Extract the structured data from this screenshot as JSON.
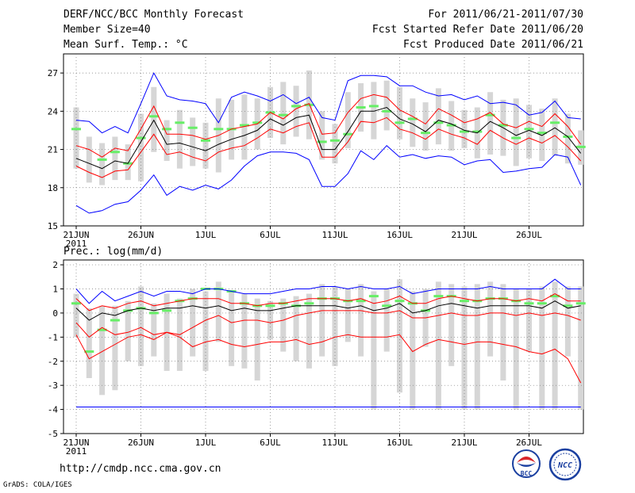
{
  "header": {
    "left": [
      "DERF/NCC/BCC Monthly Forecast",
      "Member Size=40",
      "Mean Surf. Temp.: °C"
    ],
    "right": [
      "For 2011/06/21-2011/07/30",
      "Fcst Started Refer Date 2011/06/20",
      "Fcst Produced Date 2011/06/21"
    ]
  },
  "footer": {
    "url": "http://cmdp.ncc.cma.gov.cn",
    "credit": "GrADS: COLA/IGES",
    "logo_bcc": "BCC",
    "logo_ncc": "NCC"
  },
  "colors": {
    "ensemble_mean": "#000000",
    "spread_band": "#ff0000",
    "envelope": "#0000ff",
    "climatology_marker": "#66ee66",
    "range_bar": "#d6d6d6"
  },
  "chart_data": [
    {
      "type": "line",
      "title": "Mean Surf. Temp.: °C",
      "x_tick_labels": [
        "21JUN",
        "26JUN",
        "1JUL",
        "6JUL",
        "11JUL",
        "16JUL",
        "21JUL",
        "26JUL"
      ],
      "x_tick_days": [
        0,
        5,
        10,
        15,
        20,
        25,
        30,
        35
      ],
      "year_label": "2011",
      "ylim": [
        15,
        28.5
      ],
      "y_ticks": [
        15,
        18,
        21,
        24,
        27
      ],
      "grid": true,
      "days": [
        0,
        1,
        2,
        3,
        4,
        5,
        6,
        7,
        8,
        9,
        10,
        11,
        12,
        13,
        14,
        15,
        16,
        17,
        18,
        19,
        20,
        21,
        22,
        23,
        24,
        25,
        26,
        27,
        28,
        29,
        30,
        31,
        32,
        33,
        34,
        35,
        36,
        37,
        38,
        39
      ],
      "series": [
        {
          "name": "max",
          "values": [
            23.3,
            23.2,
            22.3,
            22.8,
            22.3,
            24.6,
            27.0,
            25.2,
            24.9,
            24.8,
            24.6,
            23.1,
            25.1,
            25.5,
            25.2,
            24.8,
            25.3,
            24.6,
            25.1,
            23.5,
            23.3,
            26.4,
            26.8,
            26.8,
            26.7,
            26.0,
            26.0,
            25.5,
            25.2,
            25.3,
            24.9,
            25.2,
            24.6,
            24.7,
            24.5,
            23.7,
            23.9,
            24.8,
            23.5,
            23.4
          ]
        },
        {
          "name": "upper",
          "values": [
            21.3,
            21.0,
            20.4,
            21.1,
            20.9,
            22.6,
            24.4,
            22.2,
            22.2,
            22.1,
            21.8,
            22.1,
            22.6,
            22.8,
            23.0,
            23.9,
            23.4,
            24.2,
            24.6,
            22.2,
            22.3,
            23.9,
            25.0,
            25.3,
            25.1,
            24.1,
            23.6,
            23.0,
            24.2,
            23.7,
            23.1,
            23.4,
            23.9,
            23.0,
            22.7,
            23.2,
            22.8,
            23.8,
            22.8,
            21.4
          ]
        },
        {
          "name": "mean",
          "values": [
            20.3,
            19.9,
            19.5,
            20.1,
            19.9,
            21.6,
            23.3,
            21.4,
            21.5,
            21.2,
            20.9,
            21.4,
            21.8,
            22.1,
            22.5,
            23.4,
            22.9,
            23.5,
            23.7,
            21.0,
            21.0,
            22.4,
            24.0,
            24.0,
            24.3,
            23.4,
            23.0,
            22.4,
            23.3,
            23.0,
            22.5,
            22.3,
            23.2,
            22.7,
            22.1,
            22.5,
            22.1,
            22.7,
            22.0,
            20.7
          ]
        },
        {
          "name": "lower",
          "values": [
            19.7,
            19.2,
            18.8,
            19.3,
            19.4,
            20.8,
            22.2,
            20.6,
            20.8,
            20.4,
            20.1,
            20.8,
            21.1,
            21.3,
            21.9,
            22.6,
            22.3,
            22.8,
            23.1,
            20.4,
            20.4,
            21.6,
            23.2,
            23.1,
            23.5,
            22.6,
            22.3,
            21.8,
            22.6,
            22.2,
            21.9,
            21.4,
            22.5,
            21.9,
            21.4,
            21.9,
            21.5,
            22.1,
            21.2,
            20.1
          ]
        },
        {
          "name": "min",
          "values": [
            16.6,
            16.0,
            16.2,
            16.7,
            16.9,
            17.8,
            19.0,
            17.4,
            18.1,
            17.8,
            18.2,
            17.9,
            18.6,
            19.7,
            20.5,
            20.8,
            20.8,
            20.7,
            20.2,
            18.1,
            18.1,
            19.1,
            20.9,
            20.2,
            21.3,
            20.4,
            20.6,
            20.3,
            20.5,
            20.4,
            19.8,
            20.1,
            20.2,
            19.2,
            19.3,
            19.5,
            19.6,
            20.6,
            20.4,
            18.2
          ]
        },
        {
          "name": "climatology",
          "values": [
            22.6,
            null,
            20.2,
            20.8,
            19.9,
            21.9,
            23.6,
            22.6,
            23.1,
            22.7,
            21.7,
            22.6,
            22.6,
            22.9,
            23.1,
            23.9,
            23.7,
            24.4,
            24.5,
            21.6,
            21.7,
            22.2,
            24.3,
            24.4,
            24.0,
            23.1,
            23.4,
            22.3,
            23.1,
            22.9,
            22.4,
            22.4,
            23.7,
            22.9,
            21.9,
            22.6,
            22.3,
            23.1,
            22.0,
            21.2
          ]
        },
        {
          "name": "range_top",
          "values": [
            24.3,
            22.0,
            21.5,
            22.0,
            21.4,
            23.8,
            25.9,
            23.3,
            24.1,
            23.5,
            23.1,
            25.0,
            24.9,
            25.3,
            25.0,
            25.9,
            26.3,
            26.0,
            27.2,
            24.0,
            23.0,
            25.5,
            26.2,
            26.3,
            26.4,
            25.9,
            25.0,
            24.7,
            25.8,
            24.8,
            24.1,
            24.3,
            25.5,
            24.9,
            25.0,
            24.5,
            24.2,
            25.0,
            23.8,
            22.5
          ]
        },
        {
          "name": "range_bottom",
          "values": [
            19.5,
            18.4,
            18.2,
            18.6,
            18.6,
            18.5,
            20.8,
            20.1,
            19.5,
            19.7,
            19.5,
            19.2,
            20.2,
            20.2,
            21.0,
            21.9,
            21.4,
            22.0,
            21.8,
            20.2,
            19.9,
            21.1,
            22.4,
            21.8,
            22.5,
            21.8,
            21.2,
            20.9,
            21.4,
            20.9,
            21.1,
            20.3,
            20.6,
            20.5,
            19.7,
            20.3,
            20.1,
            20.5,
            19.9,
            19.8
          ]
        }
      ]
    },
    {
      "type": "line",
      "title": "Prec.: log(mm/d)",
      "x_tick_labels": [
        "21JUN",
        "26JUN",
        "1JUL",
        "6JUL",
        "11JUL",
        "16JUL",
        "21JUL",
        "26JUL"
      ],
      "x_tick_days": [
        0,
        5,
        10,
        15,
        20,
        25,
        30,
        35
      ],
      "year_label": "2011",
      "ylim": [
        -5,
        2.2
      ],
      "y_ticks": [
        -5,
        -4,
        -3,
        -2,
        -1,
        0,
        1,
        2
      ],
      "grid": true,
      "days": [
        0,
        1,
        2,
        3,
        4,
        5,
        6,
        7,
        8,
        9,
        10,
        11,
        12,
        13,
        14,
        15,
        16,
        17,
        18,
        19,
        20,
        21,
        22,
        23,
        24,
        25,
        26,
        27,
        28,
        29,
        30,
        31,
        32,
        33,
        34,
        35,
        36,
        37,
        38,
        39
      ],
      "series": [
        {
          "name": "max",
          "values": [
            1.0,
            0.4,
            0.9,
            0.5,
            0.7,
            0.9,
            0.7,
            0.9,
            0.9,
            0.8,
            1.0,
            1.0,
            0.9,
            0.8,
            0.8,
            0.8,
            0.9,
            1.0,
            1.0,
            1.1,
            1.1,
            1.0,
            1.1,
            1.0,
            1.0,
            1.1,
            0.8,
            0.9,
            1.0,
            1.0,
            1.0,
            1.0,
            1.1,
            1.0,
            1.0,
            1.0,
            1.0,
            1.4,
            1.0,
            1.0
          ]
        },
        {
          "name": "upper",
          "values": [
            0.6,
            0.1,
            0.3,
            0.2,
            0.4,
            0.5,
            0.3,
            0.4,
            0.5,
            0.6,
            0.6,
            0.6,
            0.4,
            0.4,
            0.3,
            0.4,
            0.4,
            0.5,
            0.6,
            0.6,
            0.6,
            0.5,
            0.6,
            0.4,
            0.5,
            0.7,
            0.4,
            0.4,
            0.6,
            0.7,
            0.6,
            0.5,
            0.6,
            0.6,
            0.5,
            0.6,
            0.5,
            0.8,
            0.5,
            0.5
          ]
        },
        {
          "name": "mean",
          "values": [
            0.2,
            -0.3,
            0.0,
            -0.1,
            0.1,
            0.2,
            0.1,
            0.2,
            0.2,
            0.3,
            0.2,
            0.3,
            0.1,
            0.2,
            0.1,
            0.1,
            0.2,
            0.3,
            0.3,
            0.3,
            0.3,
            0.2,
            0.3,
            0.1,
            0.2,
            0.4,
            0.0,
            0.1,
            0.3,
            0.4,
            0.3,
            0.2,
            0.3,
            0.3,
            0.3,
            0.3,
            0.2,
            0.5,
            0.2,
            0.3
          ]
        },
        {
          "name": "lower",
          "values": [
            -0.4,
            -1.0,
            -0.6,
            -0.9,
            -0.8,
            -0.6,
            -0.9,
            -0.8,
            -0.9,
            -0.6,
            -0.3,
            -0.1,
            -0.4,
            -0.3,
            -0.3,
            -0.4,
            -0.3,
            -0.1,
            0.0,
            0.1,
            0.1,
            0.1,
            0.1,
            0.0,
            0.0,
            0.1,
            -0.2,
            -0.2,
            -0.1,
            0.0,
            -0.1,
            -0.1,
            0.0,
            0.0,
            -0.1,
            0.0,
            -0.1,
            0.0,
            -0.1,
            -0.3
          ]
        },
        {
          "name": "min",
          "values": [
            -3.9,
            -3.9,
            -3.9,
            -3.9,
            -3.9,
            -3.9,
            -3.9,
            -3.9,
            -3.9,
            -3.9,
            -3.9,
            -3.9,
            -3.9,
            -3.9,
            -3.9,
            -3.9,
            -3.9,
            -3.9,
            -3.9,
            -3.9,
            -3.9,
            -3.9,
            -3.9,
            -3.9,
            -3.9,
            -3.9,
            -3.9,
            -3.9,
            -3.9,
            -3.9,
            -3.9,
            -3.9,
            -3.9,
            -3.9,
            -3.9,
            -3.9,
            -3.9,
            -3.9,
            -3.9,
            -3.9
          ]
        },
        {
          "name": "low_red",
          "values": [
            -0.9,
            -1.9,
            -1.6,
            -1.3,
            -1.0,
            -0.9,
            -1.1,
            -0.8,
            -1.0,
            -1.4,
            -1.2,
            -1.1,
            -1.3,
            -1.4,
            -1.3,
            -1.2,
            -1.2,
            -1.1,
            -1.3,
            -1.2,
            -1.0,
            -0.9,
            -1.0,
            -1.0,
            -1.0,
            -0.9,
            -1.6,
            -1.3,
            -1.1,
            -1.2,
            -1.3,
            -1.2,
            -1.2,
            -1.3,
            -1.4,
            -1.6,
            -1.7,
            -1.5,
            -1.9,
            -2.9
          ]
        },
        {
          "name": "climatology",
          "values": [
            0.4,
            -1.6,
            -0.7,
            -0.3,
            0.1,
            0.2,
            0.0,
            0.1,
            0.5,
            0.6,
            1.0,
            1.0,
            0.9,
            0.4,
            0.3,
            0.3,
            0.4,
            0.3,
            0.4,
            0.6,
            0.6,
            0.5,
            0.5,
            0.7,
            0.3,
            0.5,
            0.4,
            0.1,
            0.7,
            0.7,
            0.5,
            0.5,
            0.6,
            0.6,
            0.5,
            0.4,
            0.4,
            0.7,
            0.3,
            0.4
          ]
        },
        {
          "name": "range_top",
          "values": [
            0.8,
            0.2,
            0.3,
            0.3,
            0.5,
            1.1,
            0.4,
            0.8,
            0.6,
            1.0,
            0.9,
            1.3,
            0.9,
            0.8,
            0.6,
            0.5,
            0.6,
            0.7,
            0.8,
            1.2,
            1.1,
            1.0,
            1.2,
            0.9,
            1.0,
            1.4,
            0.9,
            1.0,
            1.3,
            1.2,
            1.1,
            1.2,
            1.3,
            1.2,
            1.0,
            1.0,
            1.1,
            1.3,
            1.1,
            1.1
          ]
        },
        {
          "name": "range_bottom",
          "values": [
            -1.0,
            -2.7,
            -3.4,
            -3.2,
            -2.0,
            -2.2,
            -1.8,
            -2.4,
            -2.4,
            -1.8,
            -2.4,
            -1.2,
            -2.2,
            -2.3,
            -2.8,
            -1.1,
            -1.6,
            -2.0,
            -2.3,
            -1.8,
            -2.2,
            -1.2,
            -1.8,
            -4.0,
            -1.6,
            -3.3,
            -4.0,
            -1.4,
            -4.0,
            -2.2,
            -4.0,
            -4.0,
            -1.8,
            -2.8,
            -4.0,
            -1.6,
            -4.0,
            -4.0,
            -1.8,
            -4.0
          ]
        }
      ]
    }
  ]
}
